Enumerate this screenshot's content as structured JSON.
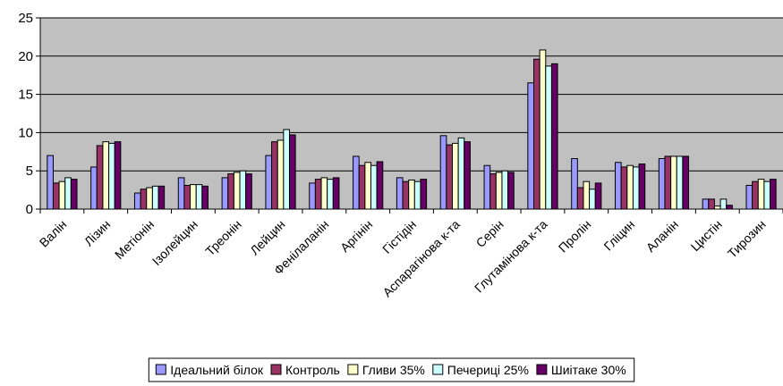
{
  "chart_data": {
    "type": "bar",
    "title": "",
    "xlabel": "",
    "ylabel": "",
    "ylim": [
      0,
      25
    ],
    "yticks": [
      0,
      5,
      10,
      15,
      20,
      25
    ],
    "grid": true,
    "legend_position": "bottom",
    "plot_background": "#C0C0C0",
    "categories": [
      "Валін",
      "Лізин",
      "Метіонін",
      "Ізолейцин",
      "Треонін",
      "Лейцин",
      "Фенілаланін",
      "Аргінін",
      "Гістідін",
      "Аспарагінова к-та",
      "Серін",
      "Глутамінова к-та",
      "Пролін",
      "Гліцин",
      "Аланін",
      "Цистін",
      "Тирозин"
    ],
    "series": [
      {
        "name": "Ідеальний білок",
        "color": "#9999FF",
        "values": [
          7.0,
          5.5,
          2.1,
          4.1,
          4.1,
          7.0,
          3.4,
          6.9,
          4.1,
          9.6,
          5.7,
          16.5,
          6.6,
          6.1,
          6.6,
          1.3,
          3.1
        ]
      },
      {
        "name": "Контроль",
        "color": "#993366",
        "values": [
          3.4,
          8.3,
          2.6,
          3.1,
          4.6,
          8.8,
          3.9,
          5.7,
          3.6,
          8.4,
          4.6,
          19.6,
          2.8,
          5.5,
          6.9,
          1.3,
          3.6
        ]
      },
      {
        "name": "Гливи 35%",
        "color": "#FFFFCC",
        "values": [
          3.6,
          8.8,
          2.8,
          3.2,
          4.8,
          9.0,
          4.1,
          6.1,
          3.8,
          8.6,
          4.8,
          20.8,
          3.6,
          5.7,
          6.9,
          0.4,
          3.9
        ]
      },
      {
        "name": "Печериці 25%",
        "color": "#CCFFFF",
        "values": [
          4.1,
          8.6,
          3.0,
          3.2,
          5.0,
          10.4,
          3.9,
          5.7,
          3.6,
          9.3,
          5.0,
          18.7,
          2.6,
          5.5,
          6.9,
          1.3,
          3.6
        ]
      },
      {
        "name": "Шиітаке 30%",
        "color": "#660066",
        "values": [
          3.9,
          8.8,
          3.0,
          3.0,
          4.6,
          9.7,
          4.1,
          6.2,
          3.9,
          8.8,
          4.8,
          19.0,
          3.4,
          5.9,
          6.9,
          0.5,
          3.9
        ]
      }
    ]
  }
}
